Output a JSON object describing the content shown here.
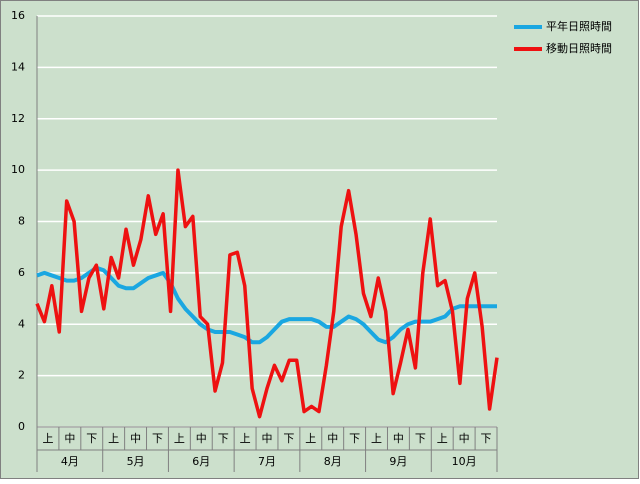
{
  "chart_data": {
    "type": "line",
    "categories": [
      null,
      "上",
      null,
      null,
      "中",
      null,
      null,
      "下",
      null,
      null,
      "上",
      null,
      null,
      "中",
      null,
      null,
      "下",
      null,
      null,
      "上",
      null,
      null,
      "中",
      null,
      null,
      "下",
      null,
      null,
      "上",
      null,
      null,
      "中",
      null,
      null,
      "下",
      null,
      null,
      "上",
      null,
      null,
      "中",
      null,
      null,
      "下",
      null,
      null,
      "上",
      null,
      null,
      "中",
      null,
      null,
      "下",
      null,
      null,
      "上",
      null,
      null,
      "中",
      null,
      null,
      "下",
      null
    ],
    "groups": [
      "4月",
      "5月",
      "6月",
      "7月",
      "8月",
      "9月",
      "10月"
    ],
    "series": [
      {
        "name": "平年日照時間",
        "color": "#1aa7e1",
        "values": [
          5.9,
          6.0,
          5.9,
          5.8,
          5.7,
          5.7,
          5.8,
          6.0,
          6.2,
          6.1,
          5.8,
          5.5,
          5.4,
          5.4,
          5.6,
          5.8,
          5.9,
          6.0,
          5.6,
          5.0,
          4.6,
          4.3,
          4.0,
          3.8,
          3.7,
          3.7,
          3.7,
          3.6,
          3.5,
          3.3,
          3.3,
          3.5,
          3.8,
          4.1,
          4.2,
          4.2,
          4.2,
          4.2,
          4.1,
          3.9,
          3.9,
          4.1,
          4.3,
          4.2,
          4.0,
          3.7,
          3.4,
          3.3,
          3.5,
          3.8,
          4.0,
          4.1,
          4.1,
          4.1,
          4.2,
          4.3,
          4.6,
          4.7,
          4.7,
          4.7,
          4.7,
          4.7,
          4.7
        ]
      },
      {
        "name": "移動日照時間",
        "color": "#ee1111",
        "values": [
          4.8,
          4.1,
          5.5,
          3.7,
          8.8,
          8.0,
          4.5,
          5.8,
          6.3,
          4.6,
          6.6,
          5.8,
          7.7,
          6.3,
          7.3,
          9.0,
          7.5,
          8.3,
          4.5,
          10.0,
          7.8,
          8.2,
          4.3,
          4.0,
          1.4,
          2.5,
          6.7,
          6.8,
          5.5,
          1.5,
          0.4,
          1.5,
          2.4,
          1.8,
          2.6,
          2.6,
          0.6,
          0.8,
          0.6,
          2.4,
          4.5,
          7.8,
          9.2,
          7.5,
          5.2,
          4.3,
          5.8,
          4.5,
          1.3,
          2.5,
          3.8,
          2.3,
          6.0,
          8.1,
          5.5,
          5.7,
          4.5,
          1.7,
          5.0,
          6.0,
          3.9,
          0.7,
          2.7
        ]
      }
    ],
    "ylim": [
      0,
      16
    ],
    "yticks": [
      0,
      2,
      4,
      6,
      8,
      10,
      12,
      14,
      16
    ],
    "grid": true,
    "legend": "top-right"
  }
}
